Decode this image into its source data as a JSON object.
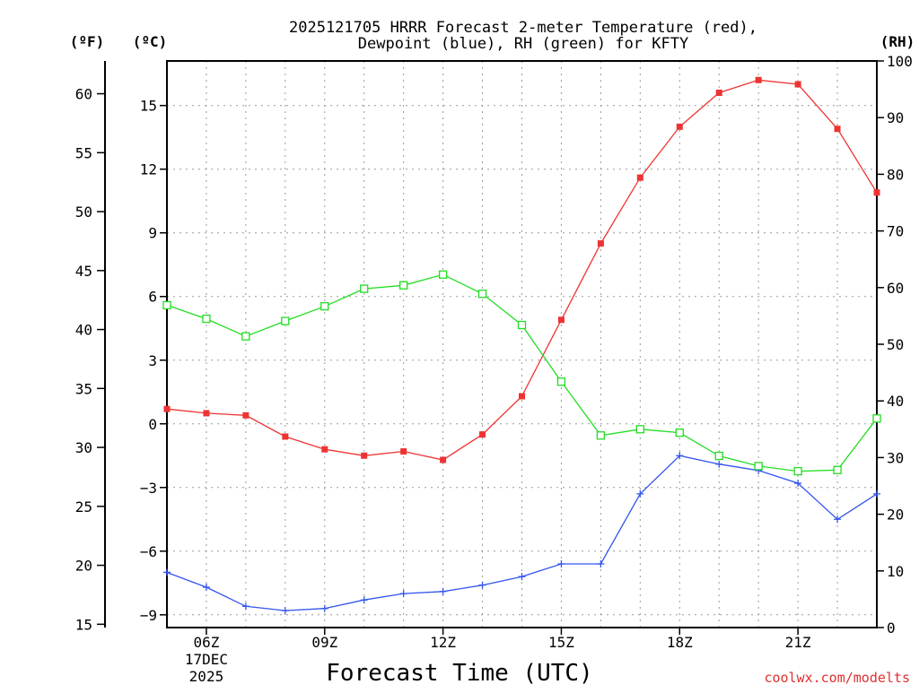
{
  "chart_data": {
    "type": "line",
    "title_line1": "2025121705 HRRR Forecast 2-meter Temperature (red),",
    "title_line2": "Dewpoint (blue), RH (green) for KFTY",
    "xlabel": "Forecast Time (UTC)",
    "credit": "coolwx.com/modelts",
    "units": {
      "fahrenheit": "(ºF)",
      "celsius": "(ºC)",
      "rh": "(RH)"
    },
    "x_hours": [
      5,
      6,
      7,
      8,
      9,
      10,
      11,
      12,
      13,
      14,
      15,
      16,
      17,
      18,
      19,
      20,
      21,
      22,
      23
    ],
    "x_ticks": [
      {
        "hour": 6,
        "label": "06Z",
        "date1": "17DEC",
        "date2": "2025"
      },
      {
        "hour": 9,
        "label": "09Z"
      },
      {
        "hour": 12,
        "label": "12Z"
      },
      {
        "hour": 15,
        "label": "15Z"
      },
      {
        "hour": 18,
        "label": "18Z"
      },
      {
        "hour": 21,
        "label": "21Z"
      }
    ],
    "celsius_ticks": [
      -9,
      -6,
      -3,
      0,
      3,
      6,
      9,
      12,
      15
    ],
    "fahrenheit_ticks": [
      15,
      20,
      25,
      30,
      35,
      40,
      45,
      50,
      55,
      60
    ],
    "rh_ticks": [
      0,
      10,
      20,
      30,
      40,
      50,
      60,
      70,
      80,
      90,
      100
    ],
    "xlim": [
      5,
      23
    ],
    "ylim_celsius": [
      -9.6,
      17.1
    ],
    "ylim_rh": [
      0,
      100
    ],
    "series": [
      {
        "name": "2-meter Temperature",
        "axis": "celsius",
        "color": "#ee3333",
        "marker": "filled-square",
        "values": [
          0.7,
          0.5,
          0.4,
          -0.6,
          -1.2,
          -1.5,
          -1.3,
          -1.7,
          -0.5,
          1.3,
          4.9,
          8.5,
          11.6,
          14.0,
          15.6,
          16.2,
          16.0,
          13.9,
          10.9
        ]
      },
      {
        "name": "Dewpoint",
        "axis": "celsius",
        "color": "#3355ee",
        "marker": "plus",
        "values": [
          -7.0,
          -7.7,
          -8.6,
          -8.8,
          -8.7,
          -8.3,
          -8.0,
          -7.9,
          -7.6,
          -7.2,
          -6.6,
          -6.6,
          -3.3,
          -1.5,
          -1.9,
          -2.2,
          -2.8,
          -4.5,
          -3.3
        ]
      },
      {
        "name": "RH",
        "axis": "rh",
        "color": "#22dd22",
        "marker": "open-square",
        "values": [
          56.9,
          54.5,
          51.4,
          54.1,
          56.7,
          59.8,
          60.4,
          62.3,
          58.9,
          53.4,
          43.4,
          33.9,
          35.0,
          34.4,
          30.3,
          28.5,
          27.6,
          27.8,
          36.9
        ]
      }
    ]
  }
}
